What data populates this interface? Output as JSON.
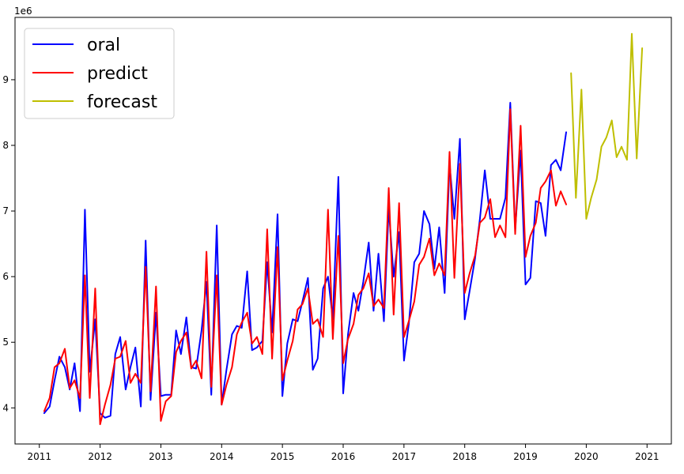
{
  "chart_data": {
    "type": "line",
    "title": "",
    "xlabel": "",
    "ylabel": "",
    "y_offset_label": "1e6",
    "xlim": [
      2010.6,
      2021.4
    ],
    "ylim": [
      3.45,
      9.95
    ],
    "x_ticks": [
      2011,
      2012,
      2013,
      2014,
      2015,
      2016,
      2017,
      2018,
      2019,
      2020,
      2021
    ],
    "x_tick_labels": [
      "2011",
      "2012",
      "2013",
      "2014",
      "2015",
      "2016",
      "2017",
      "2018",
      "2019",
      "2020",
      "2021"
    ],
    "y_ticks": [
      4,
      5,
      6,
      7,
      8,
      9
    ],
    "y_tick_labels": [
      "4",
      "5",
      "6",
      "7",
      "8",
      "9"
    ],
    "grid": false,
    "legend_position": "top-left",
    "series": [
      {
        "name": "oral",
        "color": "#0000ff",
        "x": [
          2011.08,
          2011.17,
          2011.25,
          2011.33,
          2011.42,
          2011.5,
          2011.58,
          2011.67,
          2011.75,
          2011.83,
          2011.92,
          2012.0,
          2012.08,
          2012.17,
          2012.25,
          2012.33,
          2012.42,
          2012.5,
          2012.58,
          2012.67,
          2012.75,
          2012.83,
          2012.92,
          2013.0,
          2013.08,
          2013.17,
          2013.25,
          2013.33,
          2013.42,
          2013.5,
          2013.58,
          2013.67,
          2013.75,
          2013.83,
          2013.92,
          2014.0,
          2014.08,
          2014.17,
          2014.25,
          2014.33,
          2014.42,
          2014.5,
          2014.58,
          2014.67,
          2014.75,
          2014.83,
          2014.92,
          2015.0,
          2015.08,
          2015.17,
          2015.25,
          2015.33,
          2015.42,
          2015.5,
          2015.58,
          2015.67,
          2015.75,
          2015.83,
          2015.92,
          2016.0,
          2016.08,
          2016.17,
          2016.25,
          2016.33,
          2016.42,
          2016.5,
          2016.58,
          2016.67,
          2016.75,
          2016.83,
          2016.92,
          2017.0,
          2017.08,
          2017.17,
          2017.25,
          2017.33,
          2017.42,
          2017.5,
          2017.58,
          2017.67,
          2017.75,
          2017.83,
          2017.92,
          2018.0,
          2018.08,
          2018.17,
          2018.25,
          2018.33,
          2018.42,
          2018.5,
          2018.58,
          2018.67,
          2018.75,
          2018.83,
          2018.92,
          2019.0,
          2019.08,
          2019.17,
          2019.25,
          2019.33,
          2019.42,
          2019.5,
          2019.58,
          2019.67
        ],
        "y": [
          3.92,
          4.02,
          4.42,
          4.78,
          4.62,
          4.28,
          4.68,
          3.95,
          7.02,
          4.55,
          5.35,
          3.92,
          3.85,
          3.88,
          4.82,
          5.08,
          4.28,
          4.62,
          4.92,
          4.02,
          6.55,
          4.12,
          5.45,
          4.18,
          4.2,
          4.2,
          5.18,
          4.82,
          5.38,
          4.62,
          4.6,
          5.18,
          5.92,
          4.2,
          6.78,
          4.05,
          4.58,
          5.12,
          5.25,
          5.22,
          6.08,
          4.88,
          4.92,
          5.02,
          6.22,
          5.15,
          6.95,
          4.18,
          4.98,
          5.35,
          5.32,
          5.62,
          5.98,
          4.58,
          4.75,
          5.82,
          6.0,
          5.35,
          7.52,
          4.22,
          5.12,
          5.75,
          5.48,
          5.92,
          6.52,
          5.48,
          6.35,
          5.32,
          7.05,
          6.0,
          6.68,
          4.72,
          5.28,
          6.22,
          6.35,
          7.0,
          6.8,
          6.12,
          6.75,
          5.75,
          7.72,
          6.88,
          8.1,
          5.35,
          5.78,
          6.28,
          6.88,
          7.62,
          6.88,
          6.88,
          6.88,
          7.2,
          8.65,
          6.72,
          7.92,
          5.88,
          5.98,
          7.15,
          7.12,
          6.62,
          7.7,
          7.78,
          7.62,
          8.2
        ]
      },
      {
        "name": "predict",
        "color": "#ff0000",
        "x": [
          2011.08,
          2011.17,
          2011.25,
          2011.33,
          2011.42,
          2011.5,
          2011.58,
          2011.67,
          2011.75,
          2011.83,
          2011.92,
          2012.0,
          2012.08,
          2012.17,
          2012.25,
          2012.33,
          2012.42,
          2012.5,
          2012.58,
          2012.67,
          2012.75,
          2012.83,
          2012.92,
          2013.0,
          2013.08,
          2013.17,
          2013.25,
          2013.33,
          2013.42,
          2013.5,
          2013.58,
          2013.67,
          2013.75,
          2013.83,
          2013.92,
          2014.0,
          2014.08,
          2014.17,
          2014.25,
          2014.33,
          2014.42,
          2014.5,
          2014.58,
          2014.67,
          2014.75,
          2014.83,
          2014.92,
          2015.0,
          2015.08,
          2015.17,
          2015.25,
          2015.33,
          2015.42,
          2015.5,
          2015.58,
          2015.67,
          2015.75,
          2015.83,
          2015.92,
          2016.0,
          2016.08,
          2016.17,
          2016.25,
          2016.33,
          2016.42,
          2016.5,
          2016.58,
          2016.67,
          2016.75,
          2016.83,
          2016.92,
          2017.0,
          2017.08,
          2017.17,
          2017.25,
          2017.33,
          2017.42,
          2017.5,
          2017.58,
          2017.67,
          2017.75,
          2017.83,
          2017.92,
          2018.0,
          2018.08,
          2018.17,
          2018.25,
          2018.33,
          2018.42,
          2018.5,
          2018.58,
          2018.67,
          2018.75,
          2018.83,
          2018.92,
          2019.0,
          2019.08,
          2019.17,
          2019.25,
          2019.33,
          2019.42,
          2019.5,
          2019.58,
          2019.67
        ],
        "y": [
          3.95,
          4.15,
          4.62,
          4.68,
          4.9,
          4.3,
          4.42,
          4.15,
          6.02,
          4.15,
          5.82,
          3.75,
          4.05,
          4.35,
          4.75,
          4.78,
          5.02,
          4.38,
          4.52,
          4.38,
          6.15,
          4.25,
          5.85,
          3.8,
          4.1,
          4.18,
          4.85,
          5.02,
          5.15,
          4.6,
          4.72,
          4.45,
          6.38,
          4.32,
          6.02,
          4.05,
          4.35,
          4.62,
          5.12,
          5.3,
          5.45,
          4.98,
          5.08,
          4.82,
          6.72,
          4.75,
          6.45,
          4.42,
          4.72,
          5.02,
          5.5,
          5.58,
          5.82,
          5.28,
          5.35,
          5.08,
          7.02,
          5.05,
          6.62,
          4.68,
          5.05,
          5.28,
          5.72,
          5.82,
          6.05,
          5.55,
          5.65,
          5.52,
          7.35,
          5.42,
          7.12,
          5.08,
          5.32,
          5.62,
          6.18,
          6.3,
          6.58,
          6.02,
          6.2,
          6.02,
          7.9,
          5.98,
          7.72,
          5.75,
          6.05,
          6.32,
          6.82,
          6.9,
          7.18,
          6.6,
          6.78,
          6.6,
          8.55,
          6.65,
          8.3,
          6.3,
          6.62,
          6.82,
          7.35,
          7.45,
          7.62,
          7.08,
          7.3,
          7.1
        ]
      },
      {
        "name": "forecast",
        "color": "#bfbf00",
        "x": [
          2019.75,
          2019.83,
          2019.92,
          2020.0,
          2020.08,
          2020.17,
          2020.25,
          2020.33,
          2020.42,
          2020.5,
          2020.58,
          2020.67,
          2020.75,
          2020.83,
          2020.92
        ],
        "y": [
          9.1,
          7.2,
          8.85,
          6.88,
          7.2,
          7.48,
          7.98,
          8.12,
          8.38,
          7.82,
          7.98,
          7.78,
          9.7,
          7.8,
          9.48
        ]
      }
    ]
  }
}
